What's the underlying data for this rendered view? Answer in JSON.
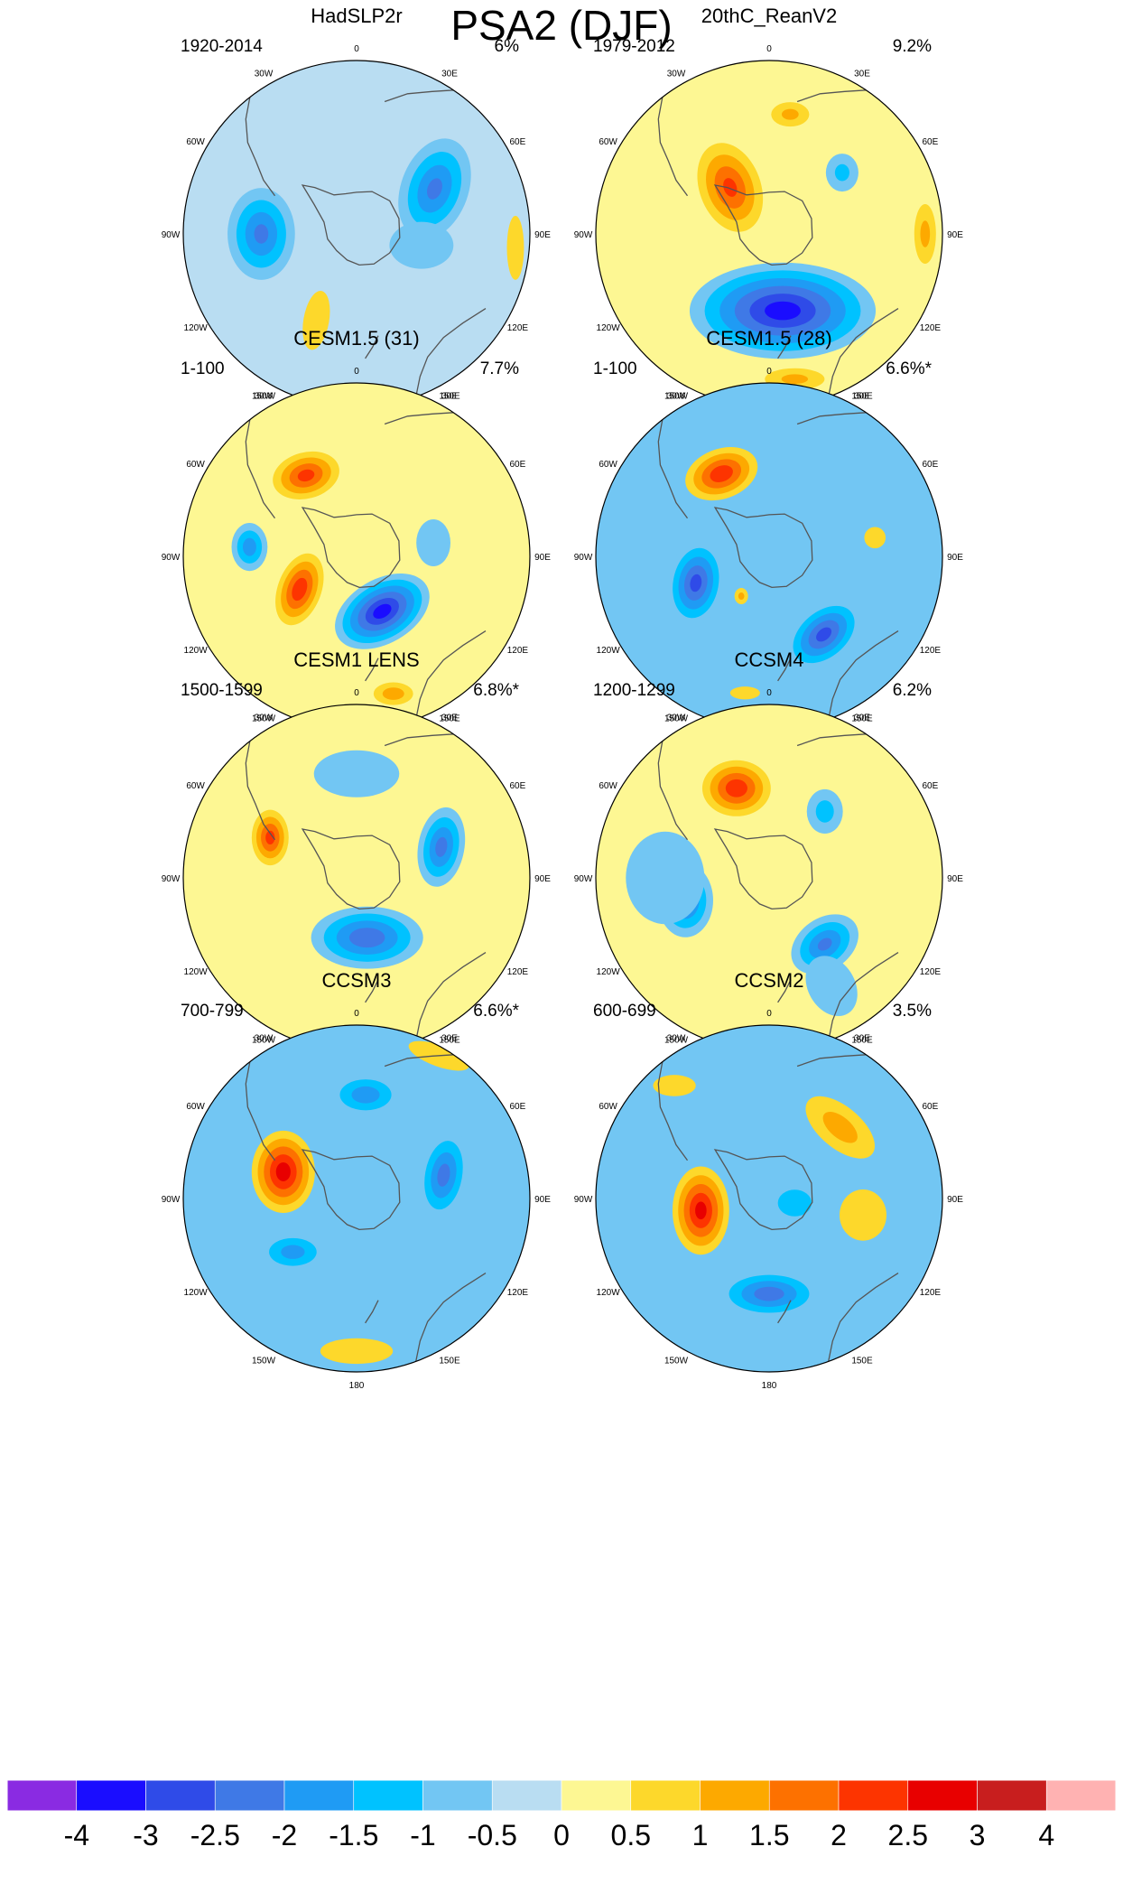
{
  "title": "PSA2 (DJF)",
  "longitude_labels": [
    "0",
    "30E",
    "60E",
    "90E",
    "120E",
    "150E",
    "180",
    "150W",
    "120W",
    "90W",
    "60W",
    "30W"
  ],
  "colors": {
    "land_outline": "#555555",
    "map_border": "#000000",
    "ice_hole": "#ffffff"
  },
  "panels": [
    {
      "name": "HadSLP2r",
      "years": "1920-2014",
      "percent": "6%",
      "bg": 0,
      "blobs": [
        {
          "lon": 60,
          "r": 0.52,
          "v": -2,
          "rx": 0.22,
          "ry": 0.34,
          "rot": 20
        },
        {
          "lon": 100,
          "r": 0.38,
          "v": -0.5,
          "rx": 0.3,
          "ry": 0.22,
          "rot": 0
        },
        {
          "lon": 270,
          "r": 0.55,
          "v": -2,
          "rx": 0.22,
          "ry": 0.3,
          "rot": 0
        },
        {
          "lon": 205,
          "r": 0.55,
          "v": 0.5,
          "rx": 0.12,
          "ry": 0.28,
          "rot": 10
        },
        {
          "lon": 95,
          "r": 0.92,
          "v": 0.5,
          "rx": 0.08,
          "ry": 0.3,
          "rot": 0
        }
      ]
    },
    {
      "name": "20thC_ReanV2",
      "years": "1979-2012",
      "percent": "9.2%",
      "bg": 0.5,
      "blobs": [
        {
          "lon": 170,
          "r": 0.45,
          "v": -3.2,
          "rx": 0.58,
          "ry": 0.3,
          "rot": 0
        },
        {
          "lon": 320,
          "r": 0.35,
          "v": 2,
          "rx": 0.2,
          "ry": 0.3,
          "rot": -20
        },
        {
          "lon": 10,
          "r": 0.7,
          "v": 1,
          "rx": 0.14,
          "ry": 0.09,
          "rot": 0
        },
        {
          "lon": 50,
          "r": 0.55,
          "v": -1,
          "rx": 0.12,
          "ry": 0.14,
          "rot": 0
        },
        {
          "lon": 90,
          "r": 0.9,
          "v": 1,
          "rx": 0.08,
          "ry": 0.22,
          "rot": 0
        },
        {
          "lon": 170,
          "r": 0.85,
          "v": 1,
          "rx": 0.22,
          "ry": 0.08,
          "rot": 0
        }
      ]
    },
    {
      "name": "CESM1.5 (31)",
      "years": "1-100",
      "percent": "7.7%",
      "bg": 0.5,
      "blobs": [
        {
          "lon": 328,
          "r": 0.55,
          "v": 2.1,
          "rx": 0.22,
          "ry": 0.15,
          "rot": -15
        },
        {
          "lon": 240,
          "r": 0.38,
          "v": 2.3,
          "rx": 0.14,
          "ry": 0.24,
          "rot": 20
        },
        {
          "lon": 155,
          "r": 0.35,
          "v": -3.2,
          "rx": 0.32,
          "ry": 0.2,
          "rot": -30
        },
        {
          "lon": 275,
          "r": 0.62,
          "v": -1.7,
          "rx": 0.12,
          "ry": 0.16,
          "rot": 0
        },
        {
          "lon": 165,
          "r": 0.82,
          "v": 1.2,
          "rx": 0.14,
          "ry": 0.08,
          "rot": 0
        },
        {
          "lon": 80,
          "r": 0.45,
          "v": -0.5,
          "rx": 0.16,
          "ry": 0.22,
          "rot": 0
        }
      ]
    },
    {
      "name": "CESM1.5 (28)",
      "years": "1-100",
      "percent": "6.6%*",
      "bg": -0.5,
      "blobs": [
        {
          "lon": 330,
          "r": 0.55,
          "v": 2.3,
          "rx": 0.24,
          "ry": 0.16,
          "rot": -20
        },
        {
          "lon": 250,
          "r": 0.45,
          "v": -2.6,
          "rx": 0.18,
          "ry": 0.28,
          "rot": 10
        },
        {
          "lon": 145,
          "r": 0.55,
          "v": -2.6,
          "rx": 0.28,
          "ry": 0.18,
          "rot": -40
        },
        {
          "lon": 215,
          "r": 0.28,
          "v": 1,
          "rx": 0.05,
          "ry": 0.06,
          "rot": 0
        },
        {
          "lon": 80,
          "r": 0.62,
          "v": 0.5,
          "rx": 0.1,
          "ry": 0.1,
          "rot": 0
        },
        {
          "lon": 190,
          "r": 0.8,
          "v": 0.5,
          "rx": 0.14,
          "ry": 0.06,
          "rot": 0
        }
      ]
    },
    {
      "name": "CESM1 LENS",
      "years": "1500-1599",
      "percent": "6.8%*",
      "bg": 0.5,
      "blobs": [
        {
          "lon": 295,
          "r": 0.55,
          "v": 2.1,
          "rx": 0.12,
          "ry": 0.18,
          "rot": 0
        },
        {
          "lon": 70,
          "r": 0.52,
          "v": -2.1,
          "rx": 0.15,
          "ry": 0.26,
          "rot": 10
        },
        {
          "lon": 170,
          "r": 0.35,
          "v": -2.3,
          "rx": 0.36,
          "ry": 0.2,
          "rot": 0
        },
        {
          "lon": 0,
          "r": 0.6,
          "v": -0.5,
          "rx": 0.4,
          "ry": 0.22,
          "rot": 0
        }
      ]
    },
    {
      "name": "CCSM4",
      "years": "1200-1299",
      "percent": "6.2%",
      "bg": 0.5,
      "blobs": [
        {
          "lon": 340,
          "r": 0.55,
          "v": 2.3,
          "rx": 0.22,
          "ry": 0.18,
          "rot": 0
        },
        {
          "lon": 255,
          "r": 0.5,
          "v": -2.1,
          "rx": 0.18,
          "ry": 0.24,
          "rot": 0
        },
        {
          "lon": 140,
          "r": 0.5,
          "v": -2,
          "rx": 0.24,
          "ry": 0.17,
          "rot": -35
        },
        {
          "lon": 40,
          "r": 0.5,
          "v": -1.1,
          "rx": 0.13,
          "ry": 0.16,
          "rot": 0
        },
        {
          "lon": 270,
          "r": 0.6,
          "v": -0.6,
          "rx": 0.34,
          "ry": 0.4,
          "rot": 0
        },
        {
          "lon": 150,
          "r": 0.72,
          "v": -0.5,
          "rx": 0.22,
          "ry": 0.3,
          "rot": -30
        }
      ]
    },
    {
      "name": "CCSM3",
      "years": "700-799",
      "percent": "6.6%*",
      "bg": -0.5,
      "blobs": [
        {
          "lon": 290,
          "r": 0.45,
          "v": 2.7,
          "rx": 0.2,
          "ry": 0.26,
          "rot": 0
        },
        {
          "lon": 75,
          "r": 0.52,
          "v": -2.1,
          "rx": 0.16,
          "ry": 0.3,
          "rot": 10
        },
        {
          "lon": 5,
          "r": 0.6,
          "v": -1.7,
          "rx": 0.25,
          "ry": 0.15,
          "rot": 0
        },
        {
          "lon": 230,
          "r": 0.48,
          "v": -1.6,
          "rx": 0.24,
          "ry": 0.14,
          "rot": 0
        },
        {
          "lon": 30,
          "r": 0.95,
          "v": 0.5,
          "rx": 0.3,
          "ry": 0.1,
          "rot": 20
        },
        {
          "lon": 180,
          "r": 0.88,
          "v": 0.5,
          "rx": 0.34,
          "ry": 0.12,
          "rot": 0
        }
      ]
    },
    {
      "name": "CCSM2",
      "years": "600-699",
      "percent": "3.5%",
      "bg": -0.5,
      "blobs": [
        {
          "lon": 260,
          "r": 0.4,
          "v": 2.6,
          "rx": 0.18,
          "ry": 0.28,
          "rot": 0
        },
        {
          "lon": 180,
          "r": 0.55,
          "v": -2.2,
          "rx": 0.34,
          "ry": 0.16,
          "rot": 0
        },
        {
          "lon": 45,
          "r": 0.58,
          "v": 1.1,
          "rx": 0.3,
          "ry": 0.15,
          "rot": 40
        },
        {
          "lon": 100,
          "r": 0.15,
          "v": -1,
          "rx": 0.28,
          "ry": 0.22,
          "rot": 0
        },
        {
          "lon": 100,
          "r": 0.55,
          "v": 0.5,
          "rx": 0.22,
          "ry": 0.24,
          "rot": 0
        },
        {
          "lon": 320,
          "r": 0.85,
          "v": 0.5,
          "rx": 0.2,
          "ry": 0.1,
          "rot": 0
        }
      ]
    }
  ],
  "colorbar": {
    "labels": [
      "-4",
      "-3",
      "-2.5",
      "-2",
      "-1.5",
      "-1",
      "-0.5",
      "0",
      "0.5",
      "1",
      "1.5",
      "2",
      "2.5",
      "3",
      "4"
    ],
    "levels": [
      -4,
      -3,
      -2.5,
      -2,
      -1.5,
      -1,
      -0.5,
      0,
      0.5,
      1,
      1.5,
      2,
      2.5,
      3,
      4
    ],
    "colors": [
      "#8a2be2",
      "#1a0dff",
      "#2f4be8",
      "#3f79e6",
      "#1f9bf4",
      "#00c2ff",
      "#72c6f3",
      "#b9ddf2",
      "#fdf793",
      "#fdd82b",
      "#fda900",
      "#fd7100",
      "#fd3400",
      "#e80000",
      "#c81e1e",
      "#ffb2b2"
    ]
  }
}
